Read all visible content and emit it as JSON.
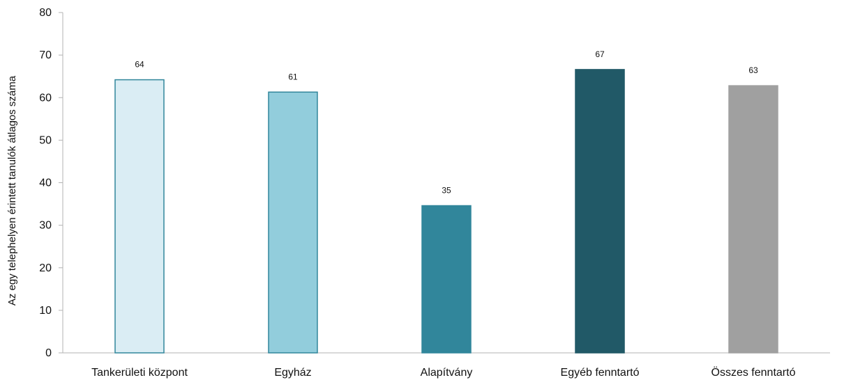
{
  "chart_data": {
    "type": "bar",
    "title": "",
    "xlabel": "",
    "ylabel": "Az egy telephelyen érintett tanulók átlagos száma",
    "ylim": [
      0,
      80
    ],
    "yticks": [
      0,
      10,
      20,
      30,
      40,
      50,
      60,
      70,
      80
    ],
    "grid": false,
    "legend": "none",
    "categories": [
      "Tankerületi központ",
      "Egyház",
      "Alapítvány",
      "Egyéb fenntartó",
      "Összes fenntartó"
    ],
    "values": [
      64.2,
      61.3,
      34.6,
      66.6,
      62.8
    ],
    "data_labels": [
      "64",
      "61",
      "35",
      "67",
      "63"
    ],
    "colors": [
      "#daedf4",
      "#92cddc",
      "#31869b",
      "#215967",
      "#a0a0a0"
    ],
    "edge_colors": [
      "#31869b",
      "#31869b",
      "#31869b",
      "#215967",
      "#a0a0a0"
    ]
  }
}
